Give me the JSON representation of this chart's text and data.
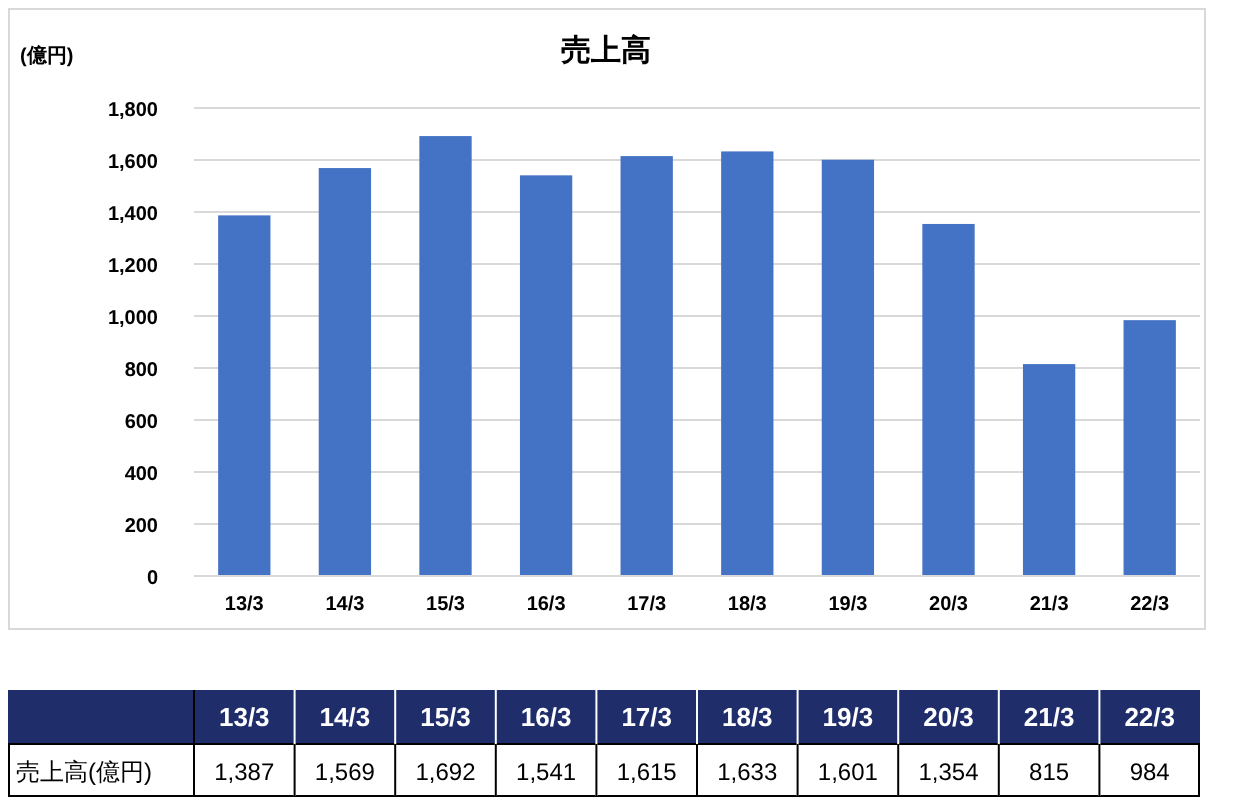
{
  "chart_data": {
    "type": "bar",
    "title": "売上高",
    "ylabel": "(億円)",
    "categories": [
      "13/3",
      "14/3",
      "15/3",
      "16/3",
      "17/3",
      "18/3",
      "19/3",
      "20/3",
      "21/3",
      "22/3"
    ],
    "values": [
      1387,
      1569,
      1692,
      1541,
      1615,
      1633,
      1601,
      1354,
      815,
      984
    ],
    "color": "#4472c4",
    "ylim": [
      0,
      1800
    ],
    "yticks": [
      0,
      {
        "value": 200,
        "label": "200"
      },
      {
        "value": 400,
        "label": "400"
      },
      {
        "value": 600,
        "label": "600"
      },
      {
        "value": 800,
        "label": "800"
      },
      {
        "value": 1000,
        "label": "1,000"
      },
      {
        "value": 1200,
        "label": "1,200"
      },
      {
        "value": 1400,
        "label": "1,400"
      },
      {
        "value": 1600,
        "label": "1,600"
      },
      {
        "value": 1800,
        "label": "1,800"
      }
    ],
    "grid": "y",
    "value_labels": [
      "1,387",
      "1,569",
      "1,692",
      "1,541",
      "1,615",
      "1,633",
      "1,601",
      "1,354",
      "815",
      "984"
    ],
    "annotations": [
      "売上高(億円)"
    ]
  }
}
